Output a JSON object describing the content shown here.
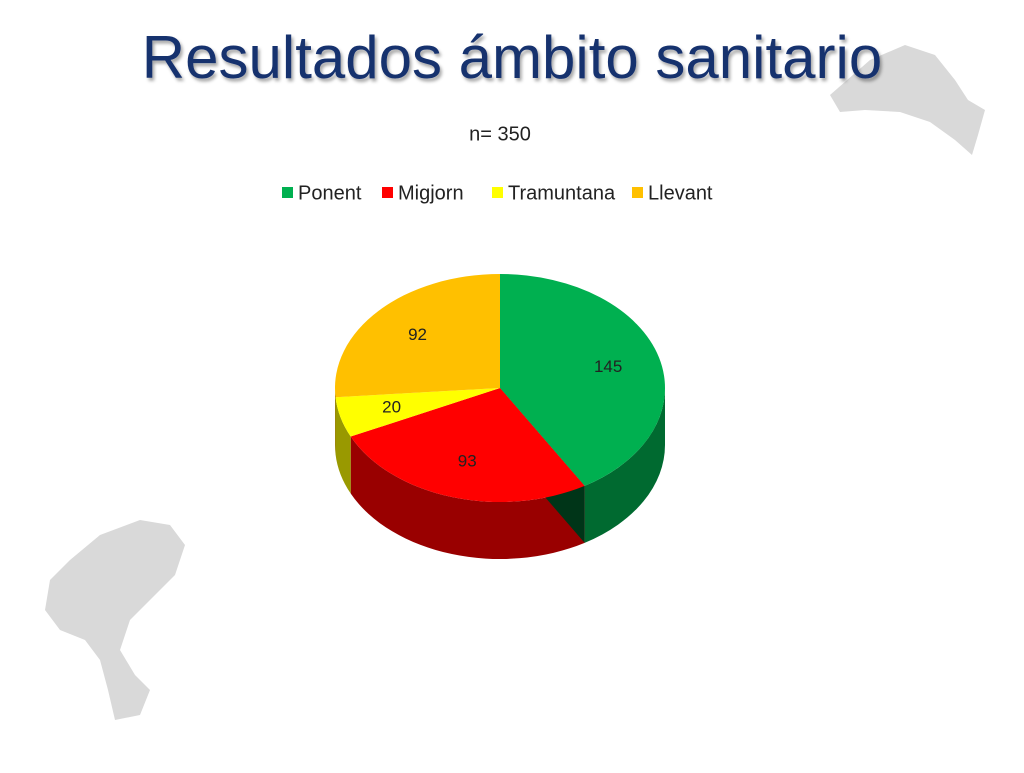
{
  "chart_data": {
    "type": "pie",
    "title": "Resultados ámbito sanitario",
    "subtitle": "n= 350",
    "categories": [
      "Ponent",
      "Migjorn",
      "Tramuntana",
      "Llevant"
    ],
    "values": [
      145,
      93,
      20,
      92
    ],
    "colors": [
      "#00b050",
      "#ff0000",
      "#ffff00",
      "#ffc000"
    ],
    "legend": "top"
  }
}
